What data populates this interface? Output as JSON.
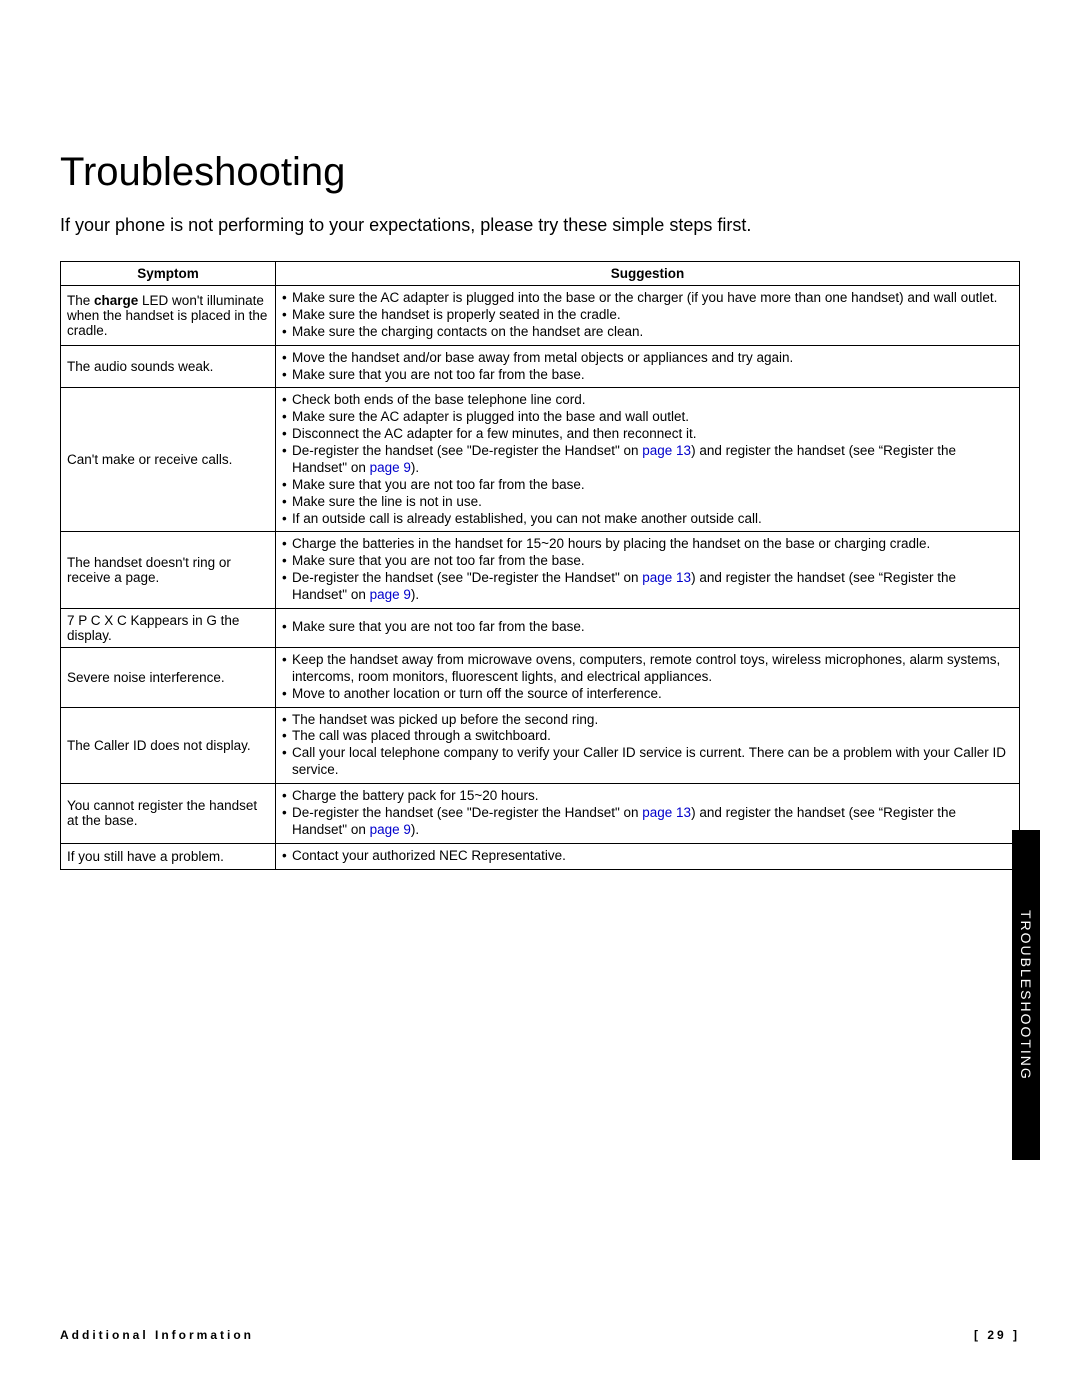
{
  "title": "Troubleshooting",
  "intro": "If your phone is not performing to your expectations, please try these simple steps first.",
  "table": {
    "headers": {
      "symptom": "Symptom",
      "suggestion": "Suggestion"
    },
    "rows": [
      {
        "symptom_pre": "The ",
        "symptom_bold": "charge",
        "symptom_post": " LED won't illuminate when the handset is placed in the cradle.",
        "bullets": [
          {
            "t": "Make sure the AC adapter is plugged into the base or the charger (if you have more than one handset) and wall outlet."
          },
          {
            "t": "Make sure the handset is properly seated in the cradle."
          },
          {
            "t": "Make sure the charging contacts on the handset are clean."
          }
        ]
      },
      {
        "symptom": "The audio sounds weak.",
        "bullets": [
          {
            "t": "Move the handset and/or base away from metal objects or appliances and try again."
          },
          {
            "t": "Make sure that you are not too far from the base."
          }
        ]
      },
      {
        "symptom": "Can't make or receive calls.",
        "bullets": [
          {
            "t": "Check both ends of the base telephone line cord."
          },
          {
            "t": "Make sure the AC adapter is plugged into the base and wall outlet."
          },
          {
            "t": "Disconnect the AC adapter for a few minutes, and then reconnect it."
          },
          {
            "pre": "De-register the handset (see \"De-register the Handset\" on ",
            "link": "page 13",
            "mid": ") and register the handset (see “Register the Handset\" on ",
            "link2": "page 9",
            "post": ")."
          },
          {
            "t": "Make sure that you are not too far from the base."
          },
          {
            "t": "Make sure the line is not in use."
          },
          {
            "t": "If an outside call is already established, you can not make another outside call."
          }
        ]
      },
      {
        "symptom": "The handset doesn't ring or receive a page.",
        "bullets": [
          {
            "t": "Charge the batteries in the handset for 15~20 hours by placing the handset on the base or charging cradle."
          },
          {
            "t": "Make sure that you are not too far from the base."
          },
          {
            "pre": "De-register the handset (see \"De-register the Handset\" on ",
            "link": "page 13",
            "mid": ") and register the handset (see “Register the Handset\" on ",
            "link2": "page 9",
            "post": ")."
          }
        ]
      },
      {
        "symptom": "7 P C X C Kappears in G the display.",
        "bullets": [
          {
            "t": "Make sure that you are not too far from the base."
          }
        ]
      },
      {
        "symptom": "Severe noise interference.",
        "bullets": [
          {
            "t": "Keep the handset away from microwave ovens, computers, remote control toys, wireless microphones, alarm systems, intercoms, room monitors, fluorescent lights, and electrical appliances."
          },
          {
            "t": "Move to another location or turn off the source of interference."
          }
        ]
      },
      {
        "symptom": "The Caller ID does not display.",
        "bullets": [
          {
            "t": "The handset was picked up before the second ring."
          },
          {
            "t": "The call was placed through a switchboard."
          },
          {
            "t": "Call your local telephone company to verify your Caller ID service is current. There can be a problem with your Caller ID service."
          }
        ]
      },
      {
        "symptom": "You cannot register the handset at the base.",
        "bullets": [
          {
            "t": "Charge the battery pack for 15~20 hours."
          },
          {
            "pre": "De-register the handset (see \"De-register the Handset\" on ",
            "link": "page 13",
            "mid": ") and register the handset (see “Register the Handset\" on ",
            "link2": "page 9",
            "post": ")."
          }
        ]
      },
      {
        "symptom": "If you still have a problem.",
        "bullets": [
          {
            "t": "Contact your authorized NEC Representative."
          }
        ]
      }
    ]
  },
  "sidebar": "TROUBLESHOOTING",
  "footer": {
    "left": "Additional Information",
    "right": "[ 29 ]"
  }
}
